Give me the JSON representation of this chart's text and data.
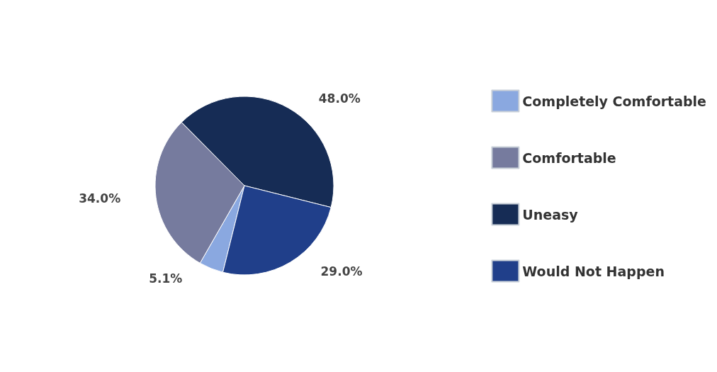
{
  "chart_data": {
    "type": "pie",
    "categories": [
      "Completely Comfortable",
      "Comfortable",
      "Uneasy",
      "Would Not Happen"
    ],
    "values": [
      5.1,
      34.0,
      48.0,
      29.0
    ],
    "colors": [
      "#8aa8e0",
      "#767b9e",
      "#162c55",
      "#203f8a"
    ],
    "value_labels": [
      "5.1%",
      "34.0%",
      "48.0%",
      "29.0%"
    ],
    "legend": "right"
  }
}
